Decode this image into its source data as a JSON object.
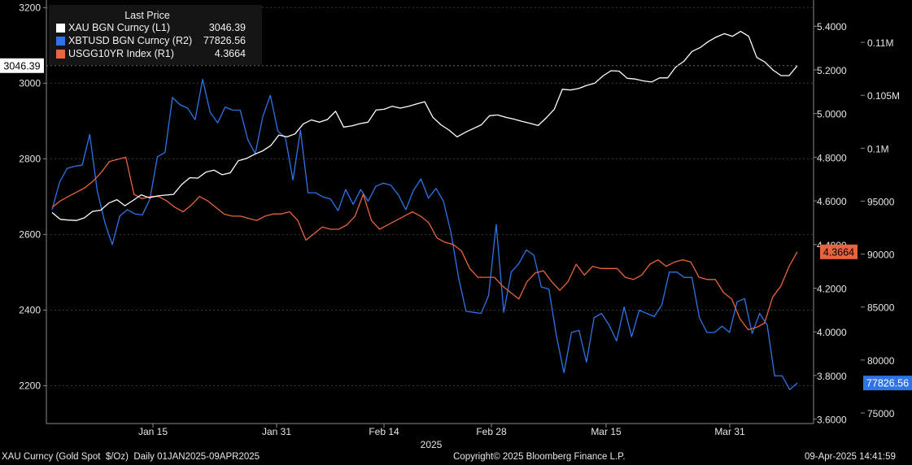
{
  "legend": {
    "header": "Last Price",
    "items": [
      {
        "label": "XAU BGN Curncy  (L1)",
        "value": "3046.39",
        "color": "#ffffff"
      },
      {
        "label": "XBTUSD BGN Curncy  (R2)",
        "value": "77826.56",
        "color": "#2e73e8"
      },
      {
        "label": "USGG10YR Index  (R1)",
        "value": "4.3664",
        "color": "#e8643c"
      }
    ]
  },
  "footer": {
    "left": "XAU Curncy (Gold Spot  $/Oz)  Daily 01JAN2025-09APR2025",
    "center": "Copyright© 2025 Bloomberg Finance L.P.",
    "right": "09-Apr-2025 14:41:59"
  },
  "chart_data": {
    "type": "line",
    "x_tick_labels": [
      "Jan 15",
      "Jan 31",
      "Feb 14",
      "Feb 28",
      "Mar 15",
      "Mar 31"
    ],
    "x_year_label": "2025",
    "axes": {
      "left": {
        "ticks": [
          "2200",
          "2400",
          "2600",
          "2800",
          "3000",
          "3200"
        ],
        "range": [
          2100,
          3220
        ]
      },
      "r1": {
        "ticks": [
          "3.6000",
          "3.8000",
          "4.0000",
          "4.2000",
          "4.4000",
          "4.6000",
          "4.8000",
          "5.0000",
          "5.2000",
          "5.4000"
        ],
        "range": [
          3.58,
          5.52
        ]
      },
      "r2": {
        "ticks": [
          "75000",
          "80000",
          "85000",
          "90000",
          "95000",
          "0.1M",
          "0.105M",
          "0.11M"
        ],
        "range": [
          74000,
          114000
        ]
      }
    },
    "series": [
      {
        "name": "XAU BGN Curncy (L1)",
        "axis": "left",
        "color": "#ffffff",
        "last_label": "3046.39",
        "values": [
          2658,
          2640,
          2638,
          2637,
          2644,
          2661,
          2664,
          2683,
          2692,
          2676,
          2690,
          2705,
          2697,
          2702,
          2704,
          2706,
          2732,
          2750,
          2749,
          2765,
          2770,
          2758,
          2763,
          2795,
          2801,
          2812,
          2821,
          2835,
          2863,
          2858,
          2866,
          2892,
          2903,
          2897,
          2904,
          2926,
          2884,
          2887,
          2893,
          2897,
          2929,
          2931,
          2939,
          2934,
          2939,
          2945,
          2951,
          2910,
          2890,
          2876,
          2858,
          2870,
          2880,
          2890,
          2914,
          2916,
          2910,
          2905,
          2899,
          2894,
          2888,
          2908,
          2931,
          2984,
          2982,
          2986,
          2994,
          3000,
          3019,
          3033,
          3032,
          3013,
          3011,
          3006,
          3003,
          3014,
          3014,
          3043,
          3058,
          3084,
          3094,
          3110,
          3122,
          3131,
          3124,
          3137,
          3124,
          3068,
          3056,
          3035,
          3020,
          3020,
          3046.39
        ]
      },
      {
        "name": "XBTUSD BGN Curncy (R2)",
        "axis": "r2",
        "color": "#2e73e8",
        "last_label": "77826.56",
        "values": [
          94200,
          96800,
          98100,
          98300,
          98400,
          101300,
          96000,
          93000,
          90900,
          93600,
          94200,
          93800,
          93700,
          95200,
          99200,
          99600,
          104800,
          104100,
          103800,
          102700,
          106500,
          103400,
          102400,
          103900,
          103600,
          103600,
          100800,
          99500,
          103000,
          105000,
          101600,
          101000,
          97000,
          101700,
          95800,
          95800,
          95400,
          95200,
          94100,
          96100,
          94700,
          96100,
          95000,
          96400,
          96700,
          96500,
          95600,
          94200,
          96000,
          97100,
          95300,
          96200,
          95000,
          92000,
          87800,
          84600,
          84500,
          84400,
          86100,
          92800,
          84500,
          88300,
          89100,
          90400,
          89900,
          86900,
          86700,
          82300,
          78800,
          82600,
          82800,
          79800,
          84000,
          84400,
          83300,
          81800,
          85000,
          82200,
          84700,
          84400,
          84100,
          85200,
          88300,
          88300,
          87800,
          87800,
          84000,
          82600,
          82600,
          83200,
          82600,
          85500,
          85800,
          82500,
          84400,
          83300,
          78500,
          78500,
          77200,
          77826.56
        ]
      },
      {
        "name": "USGG10YR Index (R1)",
        "axis": "r1",
        "color": "#e8643c",
        "last_label": "4.3664",
        "values": [
          4.57,
          4.6,
          4.62,
          4.64,
          4.66,
          4.69,
          4.73,
          4.78,
          4.79,
          4.8,
          4.63,
          4.61,
          4.62,
          4.62,
          4.6,
          4.57,
          4.55,
          4.58,
          4.62,
          4.6,
          4.57,
          4.54,
          4.53,
          4.53,
          4.52,
          4.51,
          4.53,
          4.54,
          4.54,
          4.55,
          4.51,
          4.42,
          4.45,
          4.48,
          4.47,
          4.47,
          4.49,
          4.53,
          4.63,
          4.51,
          4.47,
          4.49,
          4.51,
          4.53,
          4.55,
          4.53,
          4.5,
          4.43,
          4.41,
          4.4,
          4.37,
          4.29,
          4.25,
          4.25,
          4.25,
          4.21,
          4.18,
          4.15,
          4.23,
          4.27,
          4.28,
          4.23,
          4.19,
          4.23,
          4.31,
          4.26,
          4.3,
          4.29,
          4.29,
          4.29,
          4.25,
          4.24,
          4.26,
          4.31,
          4.33,
          4.3,
          4.32,
          4.33,
          4.32,
          4.25,
          4.24,
          4.24,
          4.18,
          4.15,
          4.06,
          4.01,
          4.02,
          4.04,
          4.16,
          4.21,
          4.3,
          4.3664
        ]
      }
    ]
  }
}
